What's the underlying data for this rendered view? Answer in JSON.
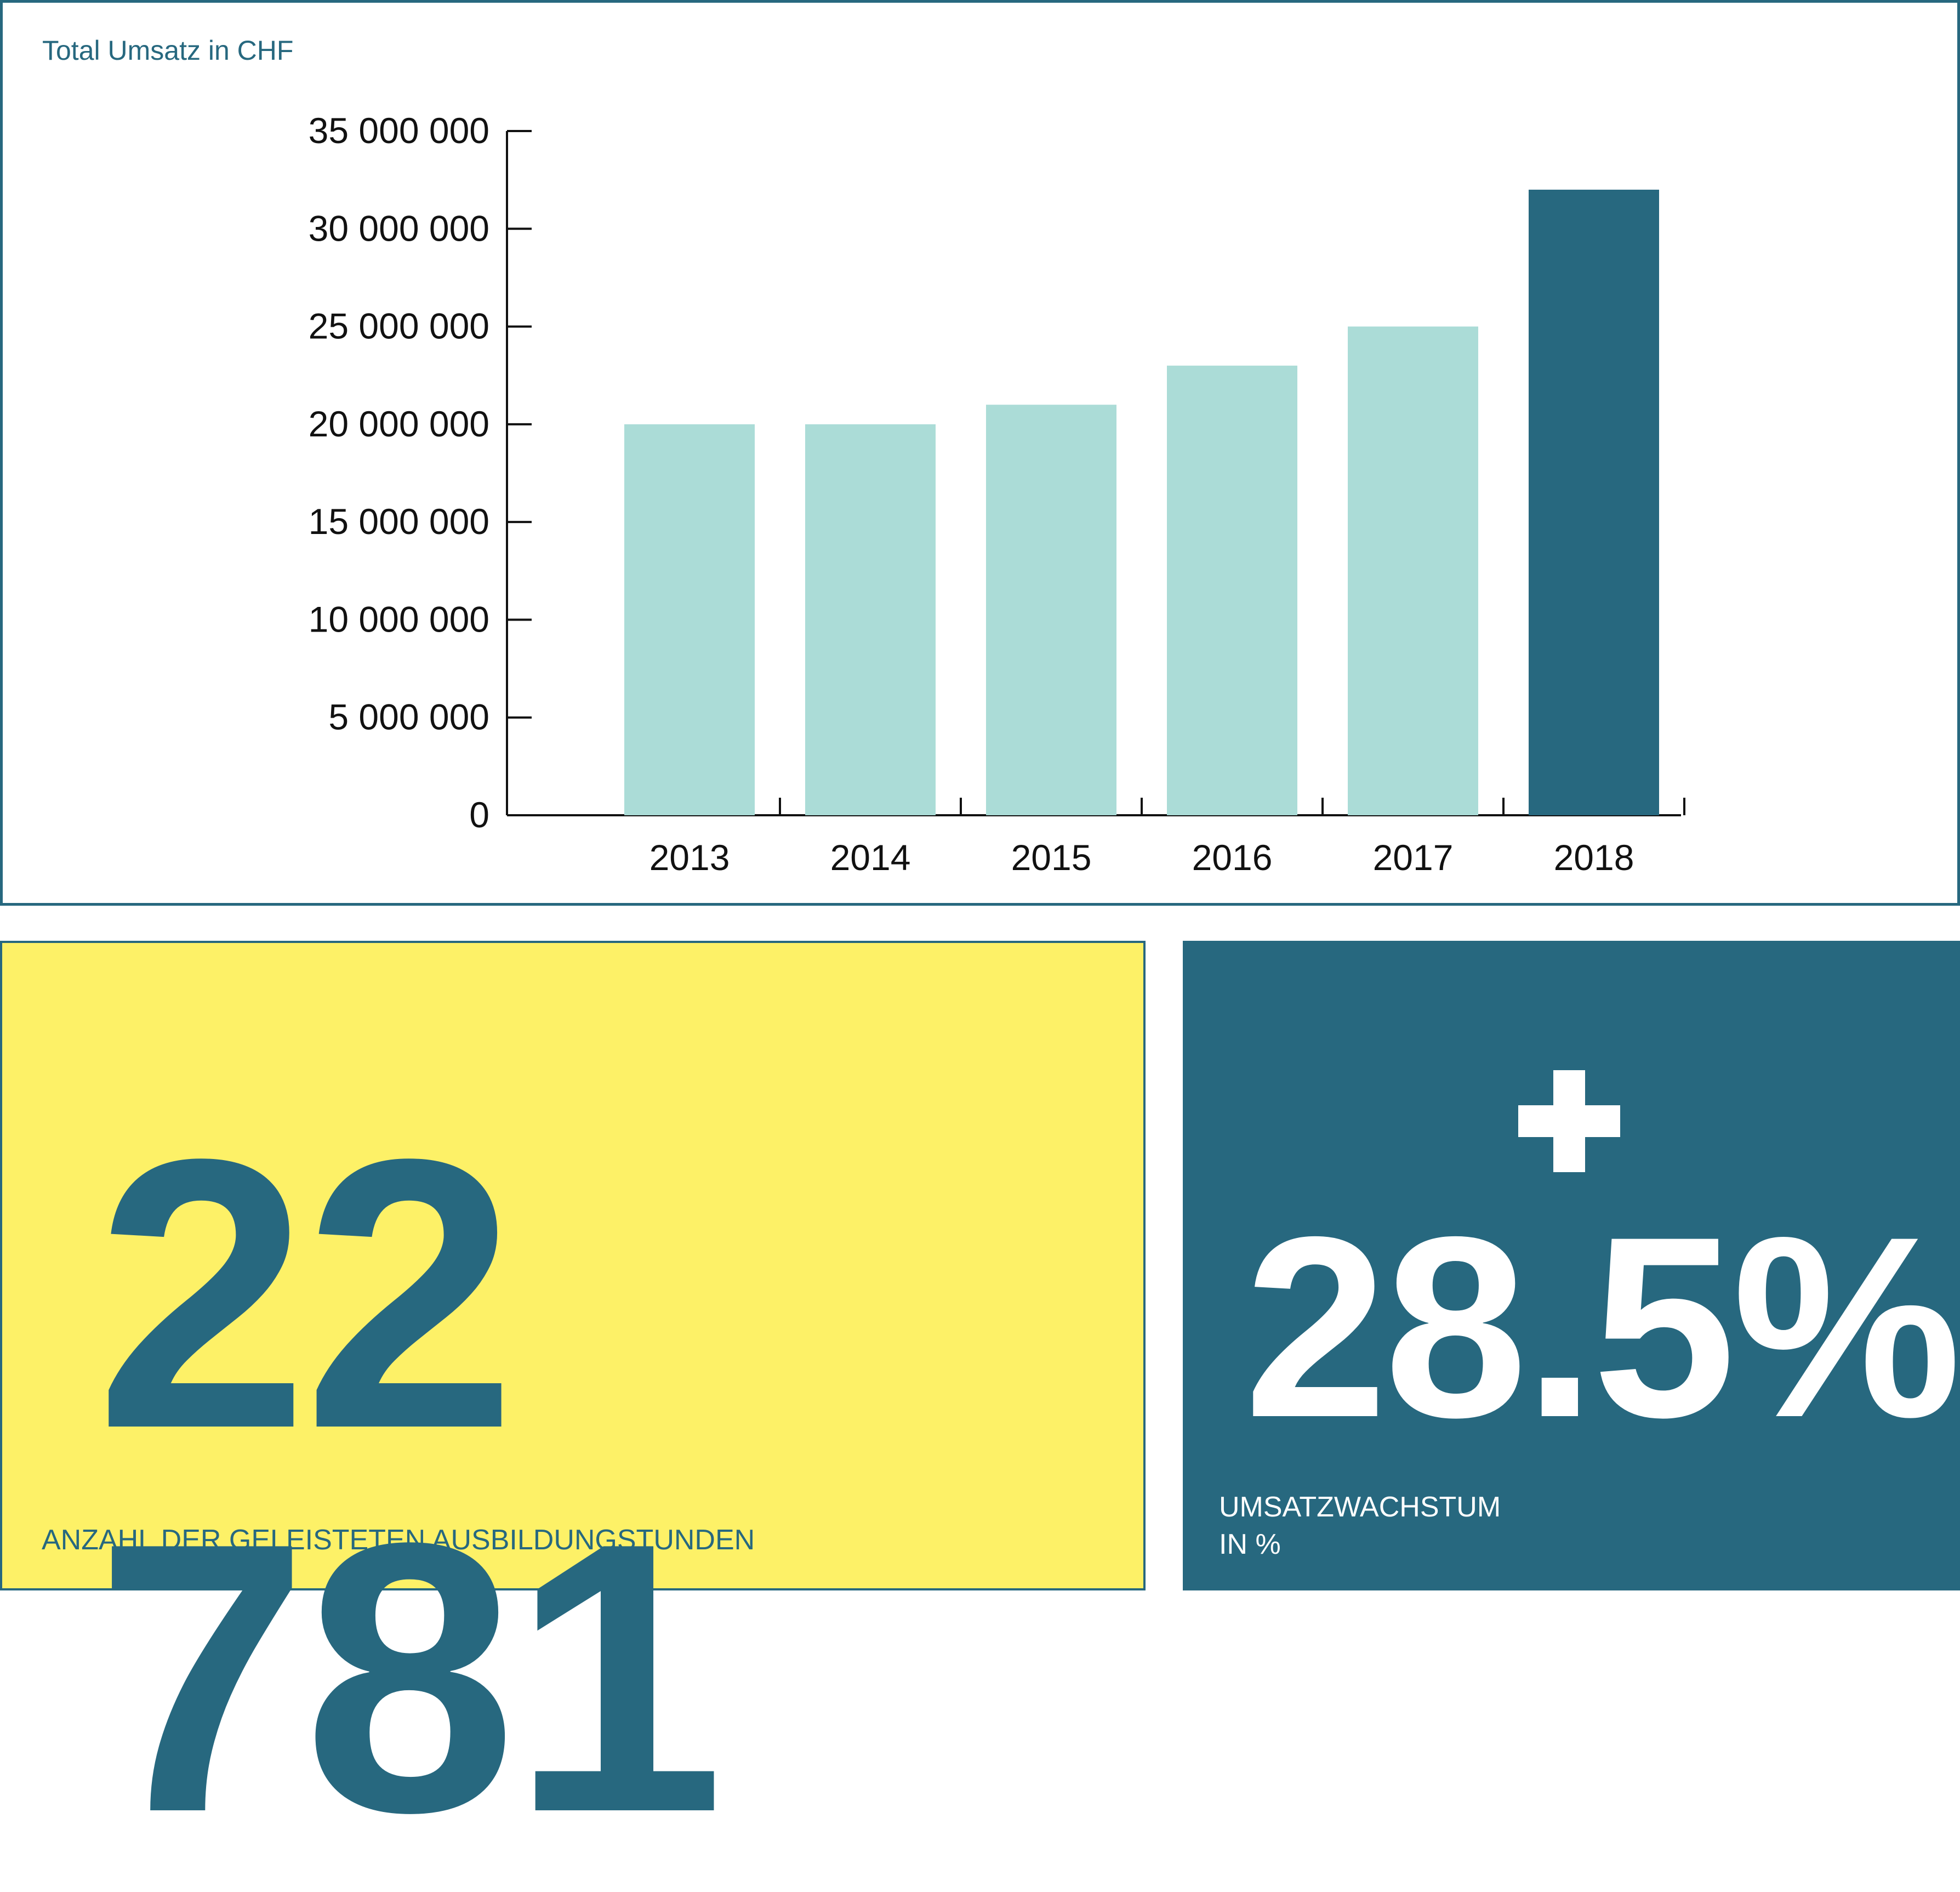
{
  "chart_data": {
    "type": "bar",
    "title": "Total Umsatz in CHF",
    "xlabel": "",
    "ylabel": "",
    "categories": [
      "2013",
      "2014",
      "2015",
      "2016",
      "2017",
      "2018"
    ],
    "values": [
      20000000,
      20000000,
      21000000,
      23000000,
      25000000,
      32000000
    ],
    "ylim": [
      0,
      35000000
    ],
    "yticks": [
      0,
      5000000,
      10000000,
      15000000,
      20000000,
      25000000,
      30000000,
      35000000
    ],
    "ytick_labels": [
      "0",
      "5 000 000",
      "10 000 000",
      "15 000 000",
      "20 000 000",
      "25 000 000",
      "30 000 000",
      "35 000 000"
    ],
    "highlight_index": 5,
    "colors": {
      "bar": "#abdcd7",
      "highlight": "#27687f",
      "axis": "#111111"
    },
    "grid": false,
    "legend": "none"
  },
  "stats": {
    "hours": {
      "value": "22 781",
      "label": "ANZAHL DER GELEISTETEN AUSBILDUNGSTUNDEN"
    },
    "growth": {
      "value": "28.5%",
      "label_line1": "UMSATZWACHSTUM",
      "label_line2": "IN %",
      "icon": "plus-icon"
    }
  },
  "colors": {
    "primary": "#27687f",
    "yellow": "#fdf167",
    "white": "#ffffff"
  }
}
